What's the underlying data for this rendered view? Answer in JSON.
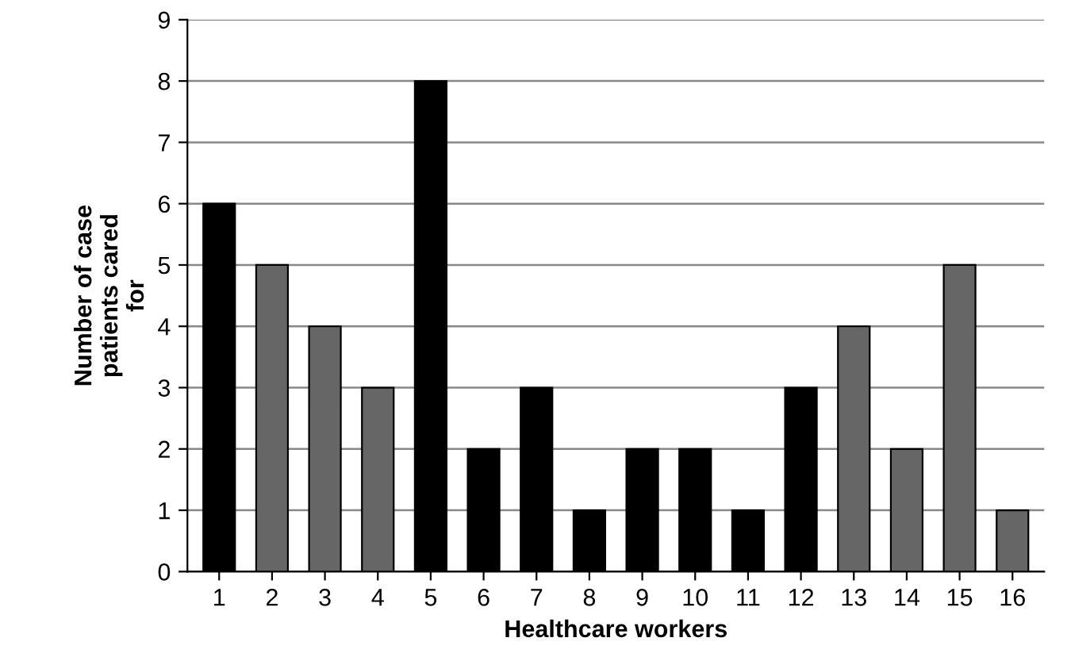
{
  "chart_data": {
    "type": "bar",
    "categories": [
      "1",
      "2",
      "3",
      "4",
      "5",
      "6",
      "7",
      "8",
      "9",
      "10",
      "11",
      "12",
      "13",
      "14",
      "15",
      "16"
    ],
    "values": [
      6,
      5,
      4,
      3,
      8,
      2,
      3,
      1,
      2,
      2,
      1,
      3,
      4,
      2,
      5,
      1
    ],
    "colors": [
      "#000000",
      "#666666",
      "#666666",
      "#666666",
      "#000000",
      "#000000",
      "#000000",
      "#000000",
      "#000000",
      "#000000",
      "#000000",
      "#000000",
      "#666666",
      "#666666",
      "#666666",
      "#666666"
    ],
    "xlabel": "Healthcare workers",
    "ylabel": "Number of case\npatients cared\nfor",
    "ylim": [
      0,
      9
    ],
    "yticks": [
      0,
      1,
      2,
      3,
      4,
      5,
      6,
      7,
      8,
      9
    ],
    "grid": "y"
  }
}
